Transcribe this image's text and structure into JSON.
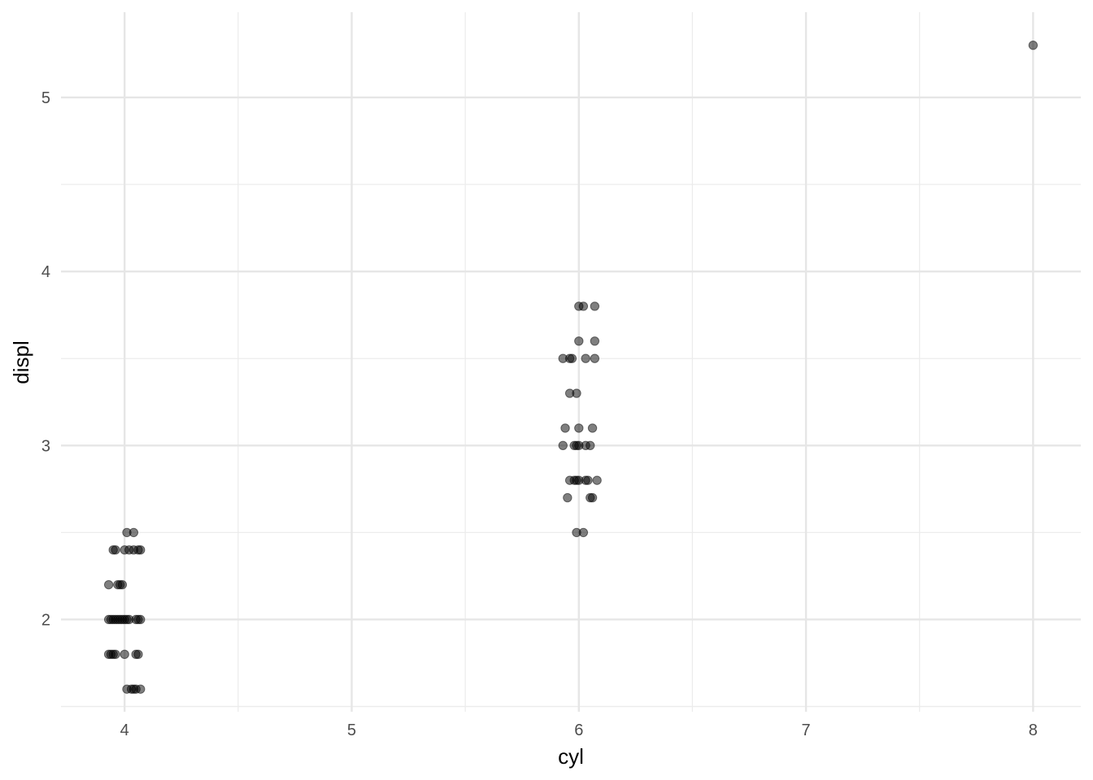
{
  "chart_data": {
    "type": "scatter",
    "title": "",
    "xlabel": "cyl",
    "ylabel": "displ",
    "xlim": [
      3.72,
      8.21
    ],
    "ylim": [
      1.47,
      5.49
    ],
    "x_ticks": [
      4,
      5,
      6,
      7,
      8
    ],
    "y_ticks": [
      2,
      3,
      4,
      5
    ],
    "x_minor": [
      4.5,
      5.5,
      6.5,
      7.5
    ],
    "y_minor": [
      1.5,
      2.5,
      3.5,
      4.5
    ],
    "grid": true,
    "legend": "none",
    "point_color": "#000000",
    "point_alpha": 0.5,
    "points": [
      {
        "x": 4.01,
        "y": 2.5
      },
      {
        "x": 4.04,
        "y": 2.5
      },
      {
        "x": 3.95,
        "y": 2.4
      },
      {
        "x": 3.96,
        "y": 2.4
      },
      {
        "x": 4.0,
        "y": 2.4
      },
      {
        "x": 4.02,
        "y": 2.4
      },
      {
        "x": 4.04,
        "y": 2.4
      },
      {
        "x": 4.06,
        "y": 2.4
      },
      {
        "x": 4.07,
        "y": 2.4
      },
      {
        "x": 3.93,
        "y": 2.2
      },
      {
        "x": 3.97,
        "y": 2.2
      },
      {
        "x": 3.98,
        "y": 2.2
      },
      {
        "x": 3.99,
        "y": 2.2
      },
      {
        "x": 3.93,
        "y": 2.0
      },
      {
        "x": 3.94,
        "y": 2.0
      },
      {
        "x": 3.95,
        "y": 2.0
      },
      {
        "x": 3.96,
        "y": 2.0
      },
      {
        "x": 3.97,
        "y": 2.0
      },
      {
        "x": 3.98,
        "y": 2.0
      },
      {
        "x": 3.99,
        "y": 2.0
      },
      {
        "x": 4.0,
        "y": 2.0
      },
      {
        "x": 4.01,
        "y": 2.0
      },
      {
        "x": 4.02,
        "y": 2.0
      },
      {
        "x": 4.05,
        "y": 2.0
      },
      {
        "x": 4.06,
        "y": 2.0
      },
      {
        "x": 4.07,
        "y": 2.0
      },
      {
        "x": 3.93,
        "y": 1.8
      },
      {
        "x": 3.94,
        "y": 1.8
      },
      {
        "x": 3.95,
        "y": 1.8
      },
      {
        "x": 3.96,
        "y": 1.8
      },
      {
        "x": 4.0,
        "y": 1.8
      },
      {
        "x": 4.05,
        "y": 1.8
      },
      {
        "x": 4.06,
        "y": 1.8
      },
      {
        "x": 4.01,
        "y": 1.6
      },
      {
        "x": 4.03,
        "y": 1.6
      },
      {
        "x": 4.04,
        "y": 1.6
      },
      {
        "x": 4.05,
        "y": 1.6
      },
      {
        "x": 4.07,
        "y": 1.6
      },
      {
        "x": 6.0,
        "y": 3.8
      },
      {
        "x": 6.02,
        "y": 3.8
      },
      {
        "x": 6.07,
        "y": 3.8
      },
      {
        "x": 6.0,
        "y": 3.6
      },
      {
        "x": 6.07,
        "y": 3.6
      },
      {
        "x": 5.93,
        "y": 3.5
      },
      {
        "x": 5.96,
        "y": 3.5
      },
      {
        "x": 5.97,
        "y": 3.5
      },
      {
        "x": 6.03,
        "y": 3.5
      },
      {
        "x": 6.07,
        "y": 3.5
      },
      {
        "x": 5.96,
        "y": 3.3
      },
      {
        "x": 5.99,
        "y": 3.3
      },
      {
        "x": 5.94,
        "y": 3.1
      },
      {
        "x": 6.0,
        "y": 3.1
      },
      {
        "x": 6.06,
        "y": 3.1
      },
      {
        "x": 5.93,
        "y": 3.0
      },
      {
        "x": 5.98,
        "y": 3.0
      },
      {
        "x": 5.99,
        "y": 3.0
      },
      {
        "x": 6.0,
        "y": 3.0
      },
      {
        "x": 6.03,
        "y": 3.0
      },
      {
        "x": 6.05,
        "y": 3.0
      },
      {
        "x": 5.96,
        "y": 2.8
      },
      {
        "x": 5.98,
        "y": 2.8
      },
      {
        "x": 5.99,
        "y": 2.8
      },
      {
        "x": 6.0,
        "y": 2.8
      },
      {
        "x": 6.03,
        "y": 2.8
      },
      {
        "x": 6.04,
        "y": 2.8
      },
      {
        "x": 6.08,
        "y": 2.8
      },
      {
        "x": 5.95,
        "y": 2.7
      },
      {
        "x": 6.05,
        "y": 2.7
      },
      {
        "x": 6.06,
        "y": 2.7
      },
      {
        "x": 5.99,
        "y": 2.5
      },
      {
        "x": 6.02,
        "y": 2.5
      },
      {
        "x": 8.0,
        "y": 5.3
      }
    ]
  }
}
